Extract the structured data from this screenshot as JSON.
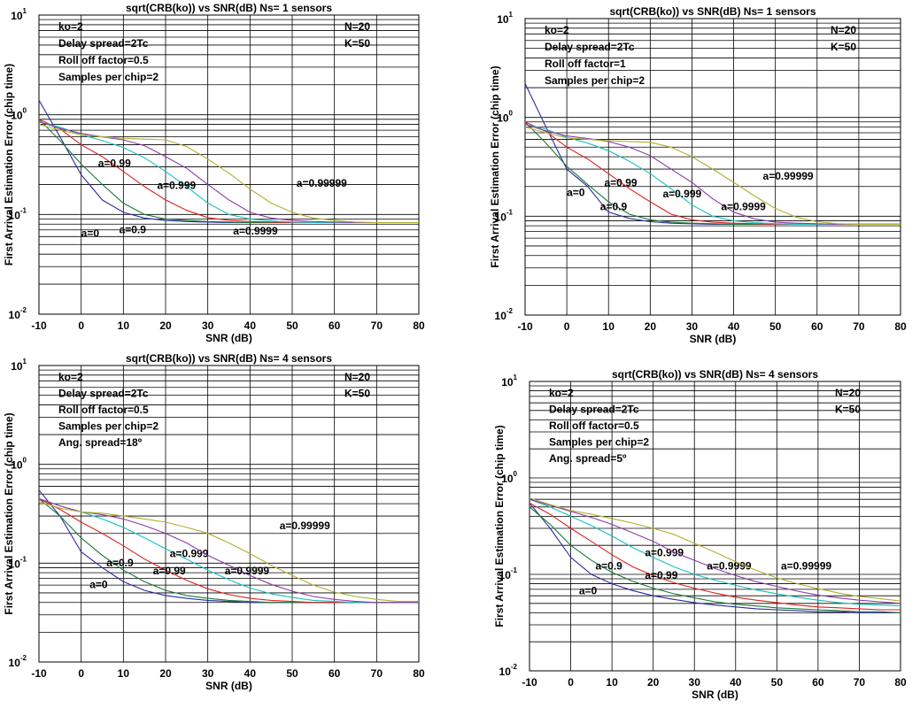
{
  "series_colors": [
    "#2b2b9e",
    "#1a7a3a",
    "#e02020",
    "#18c0c0",
    "#8e3aa8",
    "#b0b030"
  ],
  "chart_data": [
    {
      "type": "line",
      "title": "sqrt(CRB(ko)) vs SNR(dB)  Ns= 1 sensors",
      "xlabel": "SNR (dB)",
      "ylabel": "First Arrival Estimation Error (chip time)",
      "yscale": "log",
      "xlim": [
        -10,
        80
      ],
      "ylim": [
        0.01,
        10
      ],
      "xticks": [
        -10,
        0,
        10,
        20,
        30,
        40,
        50,
        60,
        70,
        80
      ],
      "yticks": [
        {
          "base": "10",
          "exp": "1",
          "value": 10
        },
        {
          "base": "10",
          "exp": "0",
          "value": 1
        },
        {
          "base": "10",
          "exp": "-1",
          "value": 0.1
        },
        {
          "base": "10",
          "exp": "-2",
          "value": 0.01
        }
      ],
      "grid": true,
      "annotations_left": [
        "ko=2",
        "Delay spread=2Tc",
        "Roll off factor=0.5",
        "Samples per chip=2"
      ],
      "annotations_right": [
        "N=20",
        "K=50"
      ],
      "x": [
        -10,
        -5,
        0,
        5,
        10,
        15,
        20,
        25,
        30,
        35,
        40,
        45,
        50,
        55,
        60,
        65,
        70,
        75,
        80
      ],
      "series": [
        {
          "label": "a=0",
          "label_at": [
            0,
            0.06
          ],
          "values": [
            1.4,
            0.6,
            0.25,
            0.14,
            0.105,
            0.092,
            0.087,
            0.085,
            0.084,
            0.083,
            0.083,
            0.083,
            0.083,
            0.083,
            0.083,
            0.083,
            0.083,
            0.083,
            0.083
          ]
        },
        {
          "label": "a=0.9",
          "label_at": [
            9,
            0.065
          ],
          "values": [
            0.9,
            0.55,
            0.32,
            0.2,
            0.13,
            0.1,
            0.09,
            0.087,
            0.085,
            0.084,
            0.083,
            0.083,
            0.083,
            0.083,
            0.083,
            0.083,
            0.083,
            0.083,
            0.083
          ]
        },
        {
          "label": "a=0.99",
          "label_at": [
            4,
            0.3
          ],
          "values": [
            0.9,
            0.72,
            0.5,
            0.38,
            0.27,
            0.19,
            0.14,
            0.11,
            0.093,
            0.087,
            0.085,
            0.084,
            0.083,
            0.083,
            0.083,
            0.083,
            0.083,
            0.083,
            0.083
          ]
        },
        {
          "label": "a=0.999",
          "label_at": [
            18,
            0.18
          ],
          "values": [
            0.85,
            0.75,
            0.63,
            0.55,
            0.47,
            0.37,
            0.27,
            0.19,
            0.13,
            0.1,
            0.09,
            0.086,
            0.084,
            0.083,
            0.083,
            0.083,
            0.083,
            0.083,
            0.083
          ]
        },
        {
          "label": "a=0.9999",
          "label_at": [
            36,
            0.063
          ],
          "values": [
            0.85,
            0.73,
            0.65,
            0.6,
            0.56,
            0.49,
            0.38,
            0.29,
            0.2,
            0.14,
            0.105,
            0.092,
            0.087,
            0.085,
            0.084,
            0.083,
            0.083,
            0.083,
            0.083
          ]
        },
        {
          "label": "a=0.99999",
          "label_at": [
            51,
            0.19
          ],
          "values": [
            0.8,
            0.7,
            0.63,
            0.6,
            0.58,
            0.57,
            0.56,
            0.48,
            0.36,
            0.26,
            0.18,
            0.13,
            0.105,
            0.092,
            0.087,
            0.084,
            0.083,
            0.083,
            0.083
          ]
        }
      ]
    },
    {
      "type": "line",
      "title": "sqrt(CRB(ko)) vs SNR(dB)  Ns= 1 sensors",
      "xlabel": "SNR (dB)",
      "ylabel": "First Arrival Estimation Error (chip time)",
      "yscale": "log",
      "xlim": [
        -10,
        80
      ],
      "ylim": [
        0.01,
        10
      ],
      "xticks": [
        -10,
        0,
        10,
        20,
        30,
        40,
        50,
        60,
        70,
        80
      ],
      "yticks": [
        {
          "base": "10",
          "exp": "1",
          "value": 10
        },
        {
          "base": "10",
          "exp": "0",
          "value": 1
        },
        {
          "base": "10",
          "exp": "-1",
          "value": 0.1
        },
        {
          "base": "10",
          "exp": "-2",
          "value": 0.01
        }
      ],
      "grid": true,
      "annotations_left": [
        "ko=2",
        "Delay spread=2Tc",
        "Roll off factor=1",
        "Samples per chip=2"
      ],
      "annotations_right": [
        "N=20",
        "K=50"
      ],
      "x": [
        -10,
        -5,
        0,
        5,
        10,
        15,
        20,
        25,
        30,
        35,
        40,
        45,
        50,
        55,
        60,
        65,
        70,
        75,
        80
      ],
      "series": [
        {
          "label": "a=0",
          "label_at": [
            0,
            0.16
          ],
          "values": [
            2.2,
            0.8,
            0.3,
            0.2,
            0.11,
            0.095,
            0.088,
            0.085,
            0.084,
            0.083,
            0.083,
            0.083,
            0.083,
            0.083,
            0.083,
            0.083,
            0.083,
            0.083,
            0.083
          ]
        },
        {
          "label": "a=0.9",
          "label_at": [
            8,
            0.115
          ],
          "values": [
            0.9,
            0.55,
            0.32,
            0.21,
            0.14,
            0.105,
            0.092,
            0.087,
            0.085,
            0.084,
            0.083,
            0.083,
            0.083,
            0.083,
            0.083,
            0.083,
            0.083,
            0.083,
            0.083
          ]
        },
        {
          "label": "a=0.99",
          "label_at": [
            9,
            0.2
          ],
          "values": [
            0.9,
            0.72,
            0.5,
            0.38,
            0.27,
            0.19,
            0.14,
            0.105,
            0.092,
            0.087,
            0.085,
            0.084,
            0.083,
            0.083,
            0.083,
            0.083,
            0.083,
            0.083,
            0.083
          ]
        },
        {
          "label": "a=0.999",
          "label_at": [
            23,
            0.155
          ],
          "values": [
            0.85,
            0.76,
            0.63,
            0.55,
            0.46,
            0.36,
            0.27,
            0.19,
            0.13,
            0.1,
            0.09,
            0.086,
            0.084,
            0.083,
            0.083,
            0.083,
            0.083,
            0.083,
            0.083
          ]
        },
        {
          "label": "a=0.9999",
          "label_at": [
            37,
            0.115
          ],
          "values": [
            0.85,
            0.73,
            0.65,
            0.61,
            0.57,
            0.5,
            0.41,
            0.3,
            0.22,
            0.15,
            0.11,
            0.094,
            0.087,
            0.085,
            0.084,
            0.083,
            0.083,
            0.083,
            0.083
          ]
        },
        {
          "label": "a=0.99999",
          "label_at": [
            47,
            0.235
          ],
          "values": [
            0.8,
            0.7,
            0.62,
            0.6,
            0.58,
            0.57,
            0.56,
            0.5,
            0.4,
            0.3,
            0.22,
            0.16,
            0.12,
            0.098,
            0.088,
            0.084,
            0.083,
            0.083,
            0.083
          ]
        }
      ]
    },
    {
      "type": "line",
      "title": "sqrt(CRB(ko)) vs SNR(dB)  Ns= 4 sensors",
      "xlabel": "SNR (dB)",
      "ylabel": "First Arrival Estimation Error (chip time)",
      "yscale": "log",
      "xlim": [
        -10,
        80
      ],
      "ylim": [
        0.01,
        10
      ],
      "xticks": [
        -10,
        0,
        10,
        20,
        30,
        40,
        50,
        60,
        70,
        80
      ],
      "yticks": [
        {
          "base": "10",
          "exp": "1",
          "value": 10
        },
        {
          "base": "10",
          "exp": "0",
          "value": 1
        },
        {
          "base": "10",
          "exp": "-1",
          "value": 0.1
        },
        {
          "base": "10",
          "exp": "-2",
          "value": 0.01
        }
      ],
      "grid": true,
      "annotations_left": [
        "ko=2",
        "Delay spread=2Tc",
        "Roll off factor=0.5",
        "Samples per chip=2",
        "Ang. spread=18º"
      ],
      "annotations_right": [
        "N=20",
        "K=50"
      ],
      "x": [
        -10,
        -5,
        0,
        5,
        10,
        15,
        20,
        25,
        30,
        35,
        40,
        45,
        50,
        55,
        60,
        65,
        70,
        75,
        80
      ],
      "series": [
        {
          "label": "a=0",
          "label_at": [
            2,
            0.056
          ],
          "values": [
            0.55,
            0.3,
            0.13,
            0.09,
            0.065,
            0.053,
            0.047,
            0.044,
            0.042,
            0.041,
            0.04,
            0.04,
            0.04,
            0.04,
            0.04,
            0.04,
            0.04,
            0.04,
            0.04
          ]
        },
        {
          "label": "a=0.9",
          "label_at": [
            6,
            0.093
          ],
          "values": [
            0.45,
            0.3,
            0.18,
            0.12,
            0.085,
            0.065,
            0.053,
            0.047,
            0.044,
            0.042,
            0.041,
            0.04,
            0.04,
            0.04,
            0.04,
            0.04,
            0.04,
            0.04,
            0.04
          ]
        },
        {
          "label": "a=0.99",
          "label_at": [
            17,
            0.077
          ],
          "values": [
            0.45,
            0.35,
            0.26,
            0.2,
            0.15,
            0.11,
            0.085,
            0.067,
            0.055,
            0.048,
            0.044,
            0.042,
            0.041,
            0.04,
            0.04,
            0.04,
            0.04,
            0.04,
            0.04
          ]
        },
        {
          "label": "a=0.999",
          "label_at": [
            21,
            0.115
          ],
          "values": [
            0.45,
            0.38,
            0.33,
            0.28,
            0.23,
            0.18,
            0.14,
            0.11,
            0.085,
            0.068,
            0.056,
            0.049,
            0.045,
            0.042,
            0.041,
            0.04,
            0.04,
            0.04,
            0.04
          ]
        },
        {
          "label": "a=0.9999",
          "label_at": [
            34,
            0.077
          ],
          "values": [
            0.45,
            0.38,
            0.33,
            0.31,
            0.28,
            0.24,
            0.2,
            0.16,
            0.12,
            0.095,
            0.075,
            0.061,
            0.052,
            0.046,
            0.043,
            0.041,
            0.04,
            0.04,
            0.04
          ]
        },
        {
          "label": "a=0.99999",
          "label_at": [
            47,
            0.22
          ],
          "values": [
            0.42,
            0.36,
            0.33,
            0.32,
            0.3,
            0.28,
            0.26,
            0.23,
            0.2,
            0.16,
            0.125,
            0.095,
            0.075,
            0.06,
            0.051,
            0.046,
            0.043,
            0.041,
            0.041
          ]
        }
      ]
    },
    {
      "type": "line",
      "title": "sqrt(CRB(ko)) vs SNR(dB)  Ns= 4 sensors",
      "xlabel": "SNR (dB)",
      "ylabel": "First Arrival Estimation Error (chip time)",
      "yscale": "log",
      "xlim": [
        -10,
        80
      ],
      "ylim": [
        0.01,
        10
      ],
      "xticks": [
        -10,
        0,
        10,
        20,
        30,
        40,
        50,
        60,
        70,
        80
      ],
      "yticks": [
        {
          "base": "10",
          "exp": "1",
          "value": 10
        },
        {
          "base": "10",
          "exp": "0",
          "value": 1
        },
        {
          "base": "10",
          "exp": "-1",
          "value": 0.1
        },
        {
          "base": "10",
          "exp": "-2",
          "value": 0.01
        }
      ],
      "grid": true,
      "annotations_left": [
        "ko=2",
        "Delay spread=2Tc",
        "Roll off factor=0.5",
        "Samples per chip=2",
        "Ang. spread=5º"
      ],
      "annotations_right": [
        "N=20",
        "K=50"
      ],
      "x": [
        -10,
        -5,
        0,
        5,
        10,
        15,
        20,
        25,
        30,
        35,
        40,
        45,
        50,
        55,
        60,
        65,
        70,
        75,
        80
      ],
      "series": [
        {
          "label": "a=0",
          "label_at": [
            2,
            0.062
          ],
          "values": [
            0.55,
            0.3,
            0.15,
            0.1,
            0.08,
            0.068,
            0.06,
            0.055,
            0.051,
            0.048,
            0.046,
            0.044,
            0.043,
            0.042,
            0.041,
            0.041,
            0.04,
            0.04,
            0.04
          ]
        },
        {
          "label": "a=0.9",
          "label_at": [
            6,
            0.112
          ],
          "values": [
            0.5,
            0.33,
            0.2,
            0.14,
            0.105,
            0.085,
            0.072,
            0.063,
            0.057,
            0.052,
            0.049,
            0.047,
            0.045,
            0.044,
            0.043,
            0.042,
            0.041,
            0.041,
            0.04
          ]
        },
        {
          "label": "a=0.99",
          "label_at": [
            18,
            0.09
          ],
          "values": [
            0.55,
            0.42,
            0.3,
            0.22,
            0.16,
            0.12,
            0.097,
            0.082,
            0.072,
            0.064,
            0.058,
            0.054,
            0.051,
            0.048,
            0.046,
            0.045,
            0.044,
            0.043,
            0.043
          ]
        },
        {
          "label": "a=0.999",
          "label_at": [
            18,
            0.155
          ],
          "values": [
            0.6,
            0.5,
            0.4,
            0.32,
            0.25,
            0.19,
            0.15,
            0.12,
            0.1,
            0.087,
            0.077,
            0.069,
            0.063,
            0.058,
            0.054,
            0.051,
            0.049,
            0.048,
            0.047
          ]
        },
        {
          "label": "a=0.9999",
          "label_at": [
            33,
            0.112
          ],
          "values": [
            0.6,
            0.52,
            0.45,
            0.39,
            0.33,
            0.27,
            0.22,
            0.17,
            0.14,
            0.115,
            0.097,
            0.084,
            0.075,
            0.067,
            0.061,
            0.057,
            0.054,
            0.052,
            0.05
          ]
        },
        {
          "label": "a=0.99999",
          "label_at": [
            51,
            0.112
          ],
          "values": [
            0.62,
            0.53,
            0.46,
            0.42,
            0.38,
            0.34,
            0.3,
            0.26,
            0.21,
            0.17,
            0.135,
            0.11,
            0.092,
            0.08,
            0.071,
            0.064,
            0.059,
            0.056,
            0.053
          ]
        }
      ]
    }
  ]
}
